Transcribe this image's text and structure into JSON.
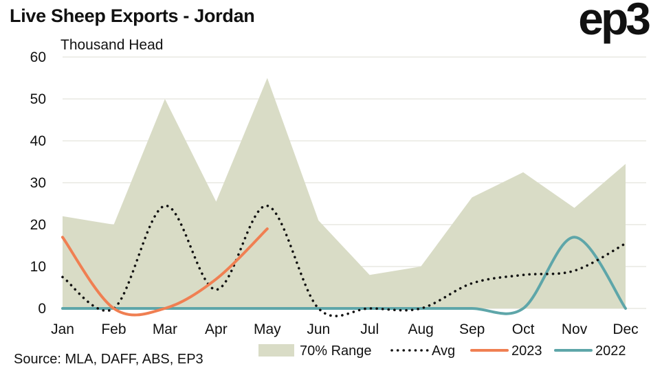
{
  "header": {
    "title": "Live Sheep Exports - Jordan",
    "logo_text": "ep3",
    "unit_label": "Thousand Head",
    "source": "Source: MLA, DAFF, ABS, EP3"
  },
  "colors": {
    "range_fill": "#d9dcc6",
    "avg": "#111111",
    "series_2023": "#f07f52",
    "series_2022": "#5ea6a9",
    "grid": "#e9e9e2"
  },
  "chart_data": {
    "type": "line",
    "categories": [
      "Jan",
      "Feb",
      "Mar",
      "Apr",
      "May",
      "Jun",
      "Jul",
      "Aug",
      "Sep",
      "Oct",
      "Nov",
      "Dec"
    ],
    "ylim": [
      0,
      60
    ],
    "yticks": [
      0,
      10,
      20,
      30,
      40,
      50,
      60
    ],
    "grid": "horizontal",
    "legend_position": "bottom-right",
    "range": {
      "name": "70% Range",
      "lower": [
        0,
        0,
        0,
        0,
        0,
        0,
        0,
        0,
        0,
        0,
        0,
        0
      ],
      "upper": [
        22,
        20,
        50,
        25.5,
        55,
        21,
        8,
        10,
        26.5,
        32.5,
        24,
        34.5
      ]
    },
    "series": [
      {
        "name": "Avg",
        "style": "dotted",
        "values": [
          7.5,
          0,
          24.5,
          4.5,
          24.5,
          0,
          0,
          0,
          6,
          8,
          9,
          15.5
        ]
      },
      {
        "name": "2023",
        "style": "solid",
        "values": [
          17,
          0,
          0,
          7,
          19,
          null,
          null,
          null,
          null,
          null,
          null,
          null
        ]
      },
      {
        "name": "2022",
        "style": "solid",
        "values": [
          0,
          0,
          0,
          0,
          0,
          0,
          0,
          0,
          0,
          0,
          17,
          0
        ]
      }
    ]
  }
}
